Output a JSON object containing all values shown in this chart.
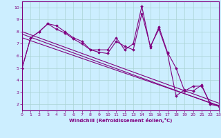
{
  "bg_color": "#cceeff",
  "line_color": "#800080",
  "grid_color": "#aad4d4",
  "xlabel": "Windchill (Refroidissement éolien,°C)",
  "xlim": [
    0,
    23
  ],
  "ylim": [
    1.5,
    10.5
  ],
  "xticks": [
    0,
    1,
    2,
    3,
    4,
    5,
    6,
    7,
    8,
    9,
    10,
    11,
    12,
    13,
    14,
    15,
    16,
    17,
    18,
    19,
    20,
    21,
    22,
    23
  ],
  "yticks": [
    2,
    3,
    4,
    5,
    6,
    7,
    8,
    9,
    10
  ],
  "xs1": [
    0,
    1,
    2,
    3,
    4,
    5,
    6,
    7,
    8,
    9,
    10,
    11,
    12,
    13,
    14,
    15,
    16,
    17,
    18,
    19,
    20,
    21,
    22,
    23
  ],
  "ys1": [
    5.0,
    7.5,
    8.0,
    8.65,
    8.5,
    8.0,
    7.5,
    7.2,
    6.5,
    6.5,
    6.5,
    7.5,
    6.5,
    7.0,
    10.1,
    6.7,
    8.4,
    6.3,
    5.0,
    3.1,
    3.5,
    3.5,
    2.1,
    1.9
  ],
  "xs2": [
    0,
    1,
    2,
    3,
    4,
    5,
    6,
    7,
    8,
    9,
    10,
    11,
    12,
    13,
    14,
    15,
    16,
    17,
    18,
    19,
    20,
    21,
    22,
    23
  ],
  "ys2": [
    5.0,
    7.5,
    8.0,
    8.65,
    8.2,
    7.9,
    7.4,
    7.0,
    6.5,
    6.3,
    6.2,
    7.2,
    6.8,
    6.5,
    9.5,
    6.8,
    8.2,
    6.2,
    2.7,
    3.2,
    3.1,
    3.6,
    2.0,
    1.85
  ],
  "trend_lines": [
    [
      0,
      7.8,
      23,
      1.85
    ],
    [
      0,
      8.0,
      23,
      2.1
    ],
    [
      0,
      7.5,
      23,
      1.9
    ]
  ]
}
